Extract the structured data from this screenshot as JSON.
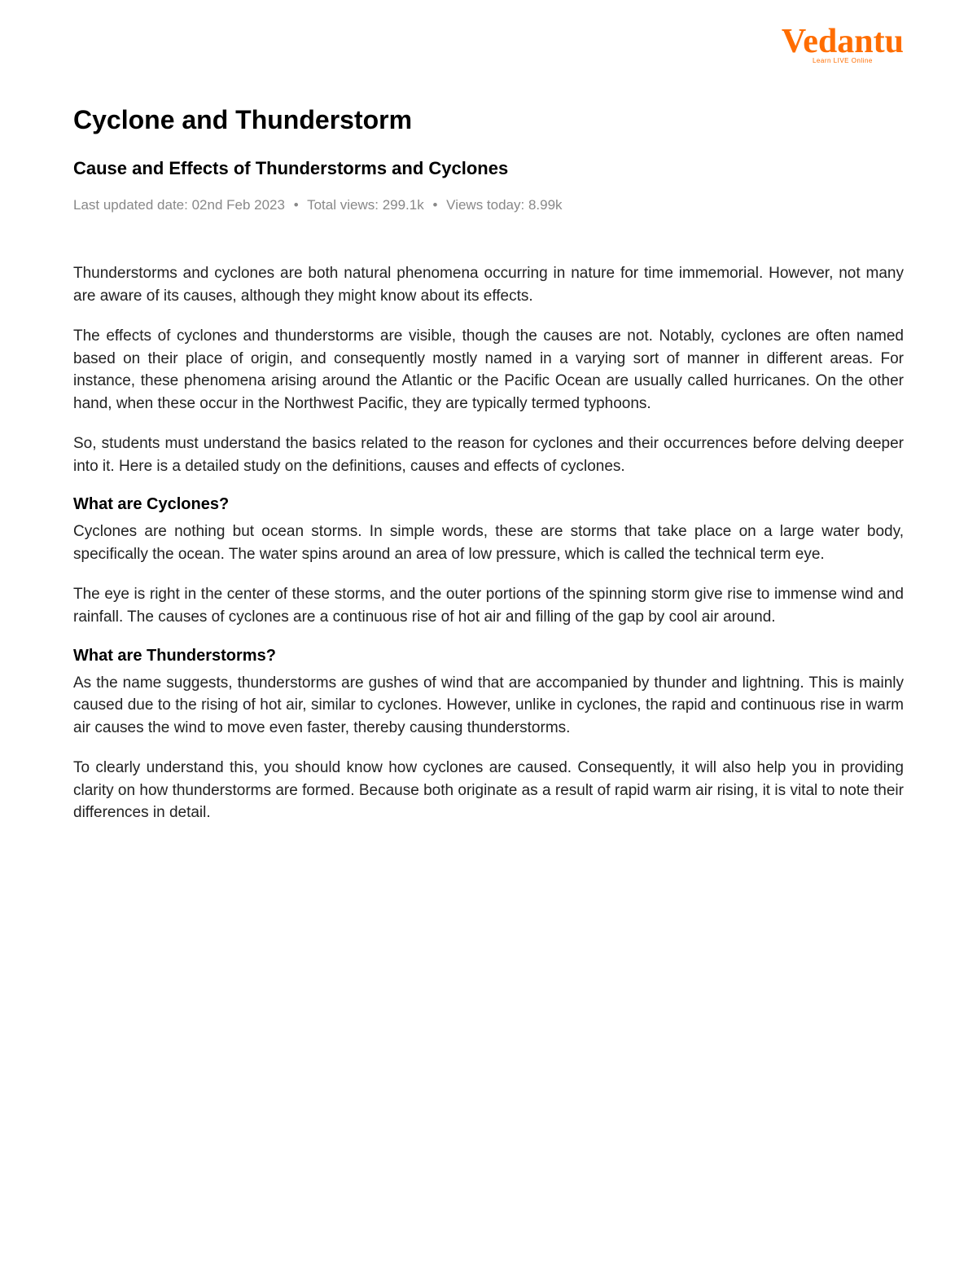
{
  "logo": {
    "brand": "Vedantu",
    "tagline": "Learn LIVE Online"
  },
  "title": "Cyclone and Thunderstorm",
  "subtitle": "Cause and Effects of Thunderstorms and Cyclones",
  "meta": {
    "last_updated_label": "Last updated date:",
    "last_updated_value": "02nd Feb 2023",
    "total_views_label": "Total views:",
    "total_views_value": "299.1k",
    "views_today_label": "Views today:",
    "views_today_value": "8.99k"
  },
  "body": {
    "p1": "Thunderstorms and cyclones are both natural phenomena occurring in nature for time immemorial. However, not many are aware of its causes, although they might know about its effects.",
    "p2": "The effects of cyclones and thunderstorms are visible, though the causes are not. Notably, cyclones are often named based on their place of origin, and consequently mostly named in a varying sort of manner in different areas. For instance, these phenomena arising around the Atlantic or the Pacific Ocean are usually called hurricanes. On the other hand, when these occur in the Northwest Pacific, they are typically termed typhoons.",
    "p3": "So, students must understand the basics related to the reason for cyclones and their occurrences before delving deeper into it. Here is a detailed study on the definitions, causes and effects of cyclones.",
    "section1_heading": "What are Cyclones?",
    "s1_p1": "Cyclones are nothing but ocean storms. In simple words, these are storms that take place on a large water body, specifically the ocean. The water spins around an area of low pressure, which is called the technical term eye.",
    "s1_p2": "The eye is right in the center of these storms, and the outer portions of the spinning storm give rise to immense wind and rainfall. The causes of cyclones are a continuous rise of hot air and filling of the gap by cool air around.",
    "section2_heading": "What are Thunderstorms?",
    "s2_p1": "As the name suggests, thunderstorms are gushes of wind that are accompanied by thunder and lightning. This is mainly caused due to the rising of hot air, similar to cyclones. However, unlike in cyclones, the rapid and continuous rise in warm air causes the wind to move even faster, thereby causing thunderstorms.",
    "s2_p2": "To clearly understand this, you should know how cyclones are caused. Consequently, it will also help you in providing clarity on how thunderstorms are formed. Because both originate as a result of rapid warm air rising, it is vital to note their differences in detail."
  }
}
